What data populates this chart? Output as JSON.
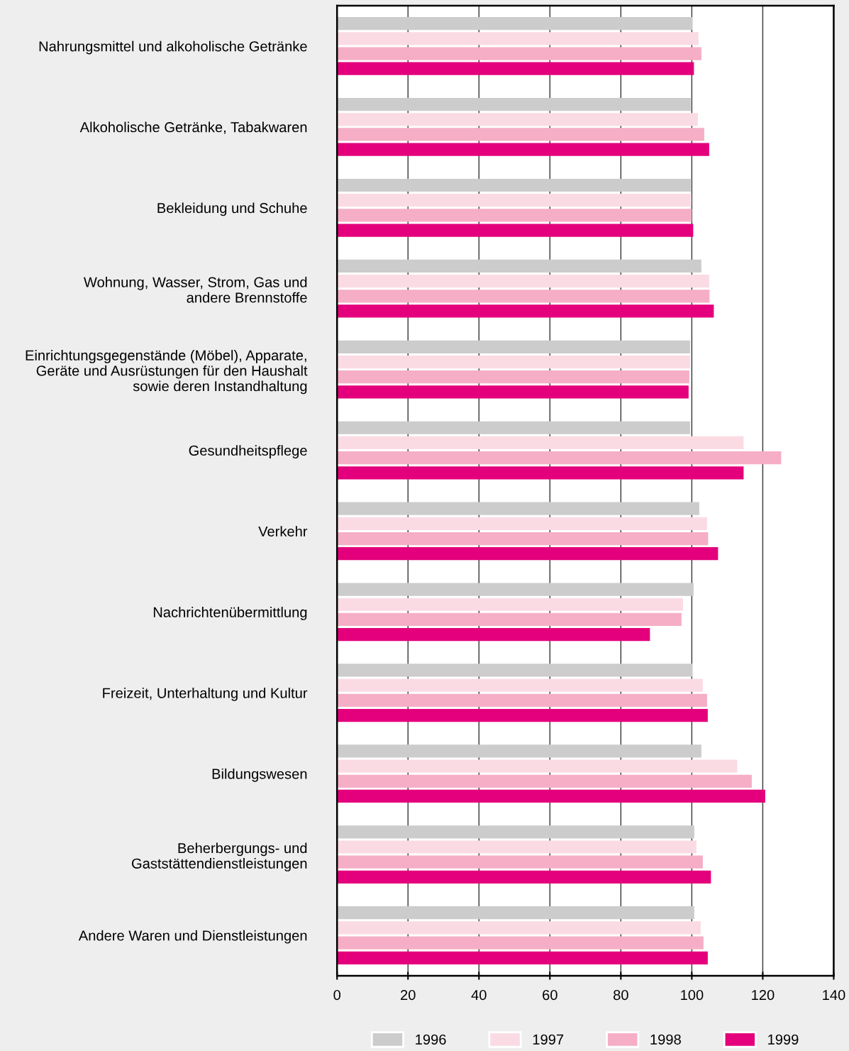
{
  "chart_data": {
    "type": "bar",
    "orientation": "horizontal",
    "categories": [
      "Nahrungsmittel und alkoholische Getränke",
      "Alkoholische Getränke, Tabakwaren",
      "Bekleidung und Schuhe",
      "Wohnung, Wasser, Strom, Gas und\nandere Brennstoffe",
      "Einrichtungsgegenstände (Möbel), Apparate,\nGeräte und Ausrüstungen für den Haushalt\nsowie deren Instandhaltung",
      "Gesundheitspflege",
      "Verkehr",
      "Nachrichtenübermittlung",
      "Freizeit, Unterhaltung und Kultur",
      "Bildungswesen",
      "Beherbergungs- und\nGaststättendienstleistungen",
      "Andere Waren und Dienstleistungen"
    ],
    "series": [
      {
        "name": "1996",
        "color": "#cccccc",
        "values": [
          100.2,
          99.9,
          99.9,
          102.7,
          99.5,
          99.5,
          102.1,
          100.5,
          100.2,
          102.7,
          100.7,
          100.7
        ]
      },
      {
        "name": "1997",
        "color": "#fadbe4",
        "values": [
          101.9,
          101.7,
          99.9,
          104.9,
          99.5,
          114.6,
          104.3,
          97.5,
          103.1,
          112.8,
          101.3,
          102.5
        ]
      },
      {
        "name": "1998",
        "color": "#f5aec6",
        "values": [
          102.7,
          103.5,
          100.0,
          105.0,
          99.3,
          125.2,
          104.6,
          97.1,
          104.3,
          116.9,
          103.1,
          103.3
        ]
      },
      {
        "name": "1999",
        "color": "#e4007c",
        "values": [
          100.6,
          104.9,
          100.4,
          106.2,
          99.1,
          114.6,
          107.4,
          88.2,
          104.5,
          120.7,
          105.4,
          104.5
        ]
      }
    ],
    "xlim": [
      0,
      140
    ],
    "xticks": [
      0,
      20,
      40,
      60,
      80,
      100,
      120,
      140
    ],
    "grid": "x",
    "legend": "bottom"
  }
}
